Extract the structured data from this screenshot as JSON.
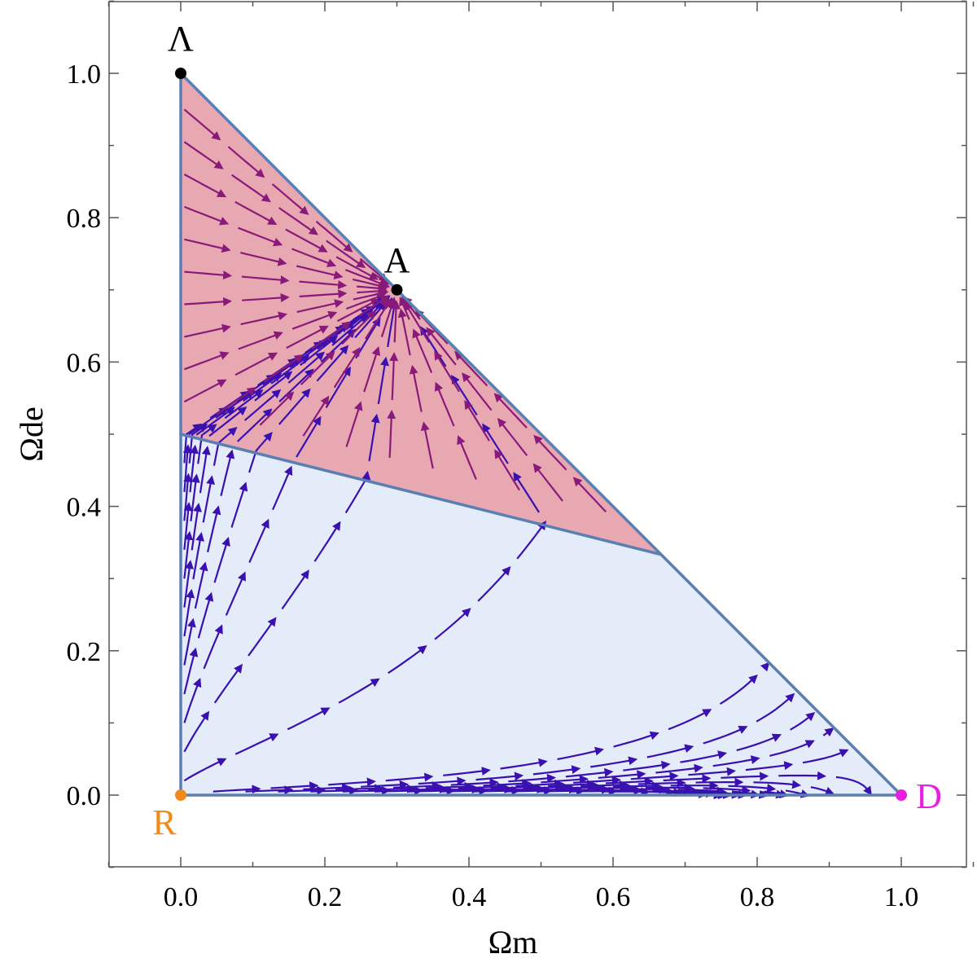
{
  "chart_data": {
    "type": "stream",
    "xlabel": "Ωm",
    "ylabel": "Ωde",
    "xlim": [
      -0.1,
      1.1
    ],
    "ylim": [
      -0.1,
      1.1
    ],
    "x_ticks": [
      "0.0",
      "0.2",
      "0.4",
      "0.6",
      "0.8",
      "1.0"
    ],
    "y_ticks": [
      "0.0",
      "0.2",
      "0.4",
      "0.6",
      "0.8",
      "1.0"
    ],
    "regions": [
      {
        "color": "#e8a8b2",
        "vertices": [
          [
            0,
            1
          ],
          [
            0,
            0.5
          ],
          [
            0.6667,
            0.3333
          ]
        ]
      },
      {
        "color": "#e3ecf8",
        "vertices": [
          [
            0,
            0.5
          ],
          [
            0,
            0
          ],
          [
            1,
            0
          ],
          [
            0.6667,
            0.3333
          ]
        ]
      }
    ],
    "boundary_color": "#5a7fb3",
    "flow_colors": {
      "upper": "#8a1a7a",
      "lower": "#3a10b0"
    },
    "critical_points": [
      {
        "label": "Λ",
        "x": 0,
        "y": 1,
        "color": "#000000"
      },
      {
        "label": "A",
        "x": 0.3,
        "y": 0.7,
        "color": "#000000"
      },
      {
        "label": "R",
        "x": 0,
        "y": 0,
        "color": "#f08a1a"
      },
      {
        "label": "D",
        "x": 1,
        "y": 0,
        "color": "#e81ee0"
      }
    ]
  }
}
